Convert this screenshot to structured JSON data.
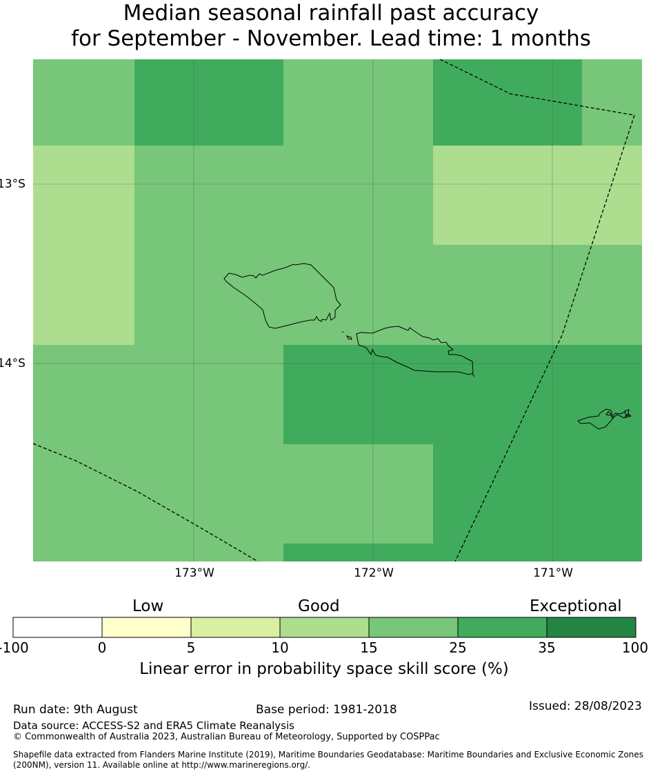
{
  "title": {
    "line1": "Median seasonal rainfall past accuracy",
    "line2": "for September - November. Lead time: 1 months"
  },
  "map": {
    "lat_labels": [
      "13°S",
      "14°S"
    ],
    "lon_labels": [
      "173°W",
      "172°W",
      "171°W"
    ],
    "grid_colors": {
      "c15_25": "#78c679",
      "c25_35": "#41ab5d",
      "c10_15": "#addd8e"
    }
  },
  "colorbar": {
    "category_labels": [
      "Low",
      "Good",
      "Exceptional"
    ],
    "ticks": [
      "-100",
      "0",
      "5",
      "10",
      "15",
      "25",
      "35",
      "100"
    ],
    "colors": [
      "#ffffff",
      "#ffffcc",
      "#d9f0a3",
      "#addd8e",
      "#78c679",
      "#41ab5d",
      "#238443"
    ],
    "label": "Linear error in probability space skill score (%)"
  },
  "footer": {
    "run_date": "Run date: 9th August",
    "base_period": "Base period: 1981-2018",
    "issued": "Issued: 28/08/2023",
    "data_source": "Data source: ACCESS-S2 and ERA5 Climate Reanalysis",
    "copyright": "© Commonwealth of Australia 2023, Australian Bureau of Meteorology, Supported by COSPPac",
    "shapefile_line1": "Shapefile data extracted from Flanders Marine Institute (2019), Maritime Boundaries Geodatabase: Maritime Boundaries and Exclusive Economic Zones",
    "shapefile_line2": "(200NM), version 11. Available online at http://www.marineregions.org/."
  }
}
